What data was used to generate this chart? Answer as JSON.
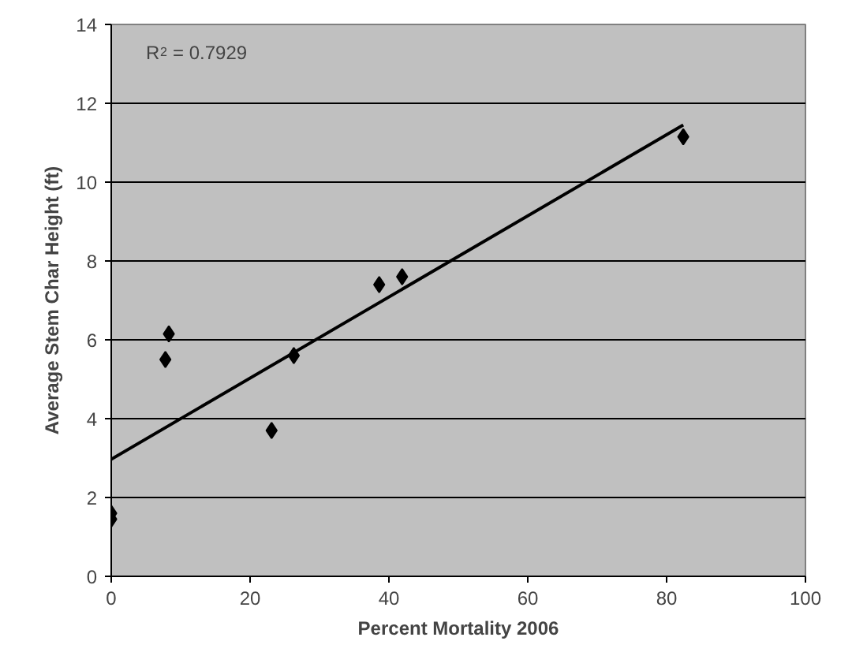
{
  "chart_data": {
    "type": "scatter",
    "xlabel": "Percent Mortality 2006",
    "ylabel": "Average Stem Char Height (ft)",
    "annotations": [
      "R$^{2}$ = 0.7929"
    ],
    "xlim": [
      0,
      100
    ],
    "ylim": [
      0,
      14
    ],
    "xticks": [
      0,
      20,
      40,
      60,
      80,
      100
    ],
    "yticks": [
      0,
      2,
      4,
      6,
      8,
      10,
      12,
      14
    ],
    "grid": "y",
    "marker": "diamond",
    "series": [
      {
        "color": "#000000",
        "x": [
          0,
          0,
          7.8,
          8.3,
          23.1,
          26.3,
          38.6,
          41.9,
          82.4
        ],
        "values": [
          1.6,
          1.45,
          5.5,
          6.15,
          3.7,
          5.6,
          7.4,
          7.6,
          11.15
        ]
      },
      {
        "type": "line",
        "marker": "none",
        "color": "#000000",
        "x": [
          0,
          82.4
        ],
        "values": [
          2.97,
          11.45
        ]
      }
    ]
  }
}
